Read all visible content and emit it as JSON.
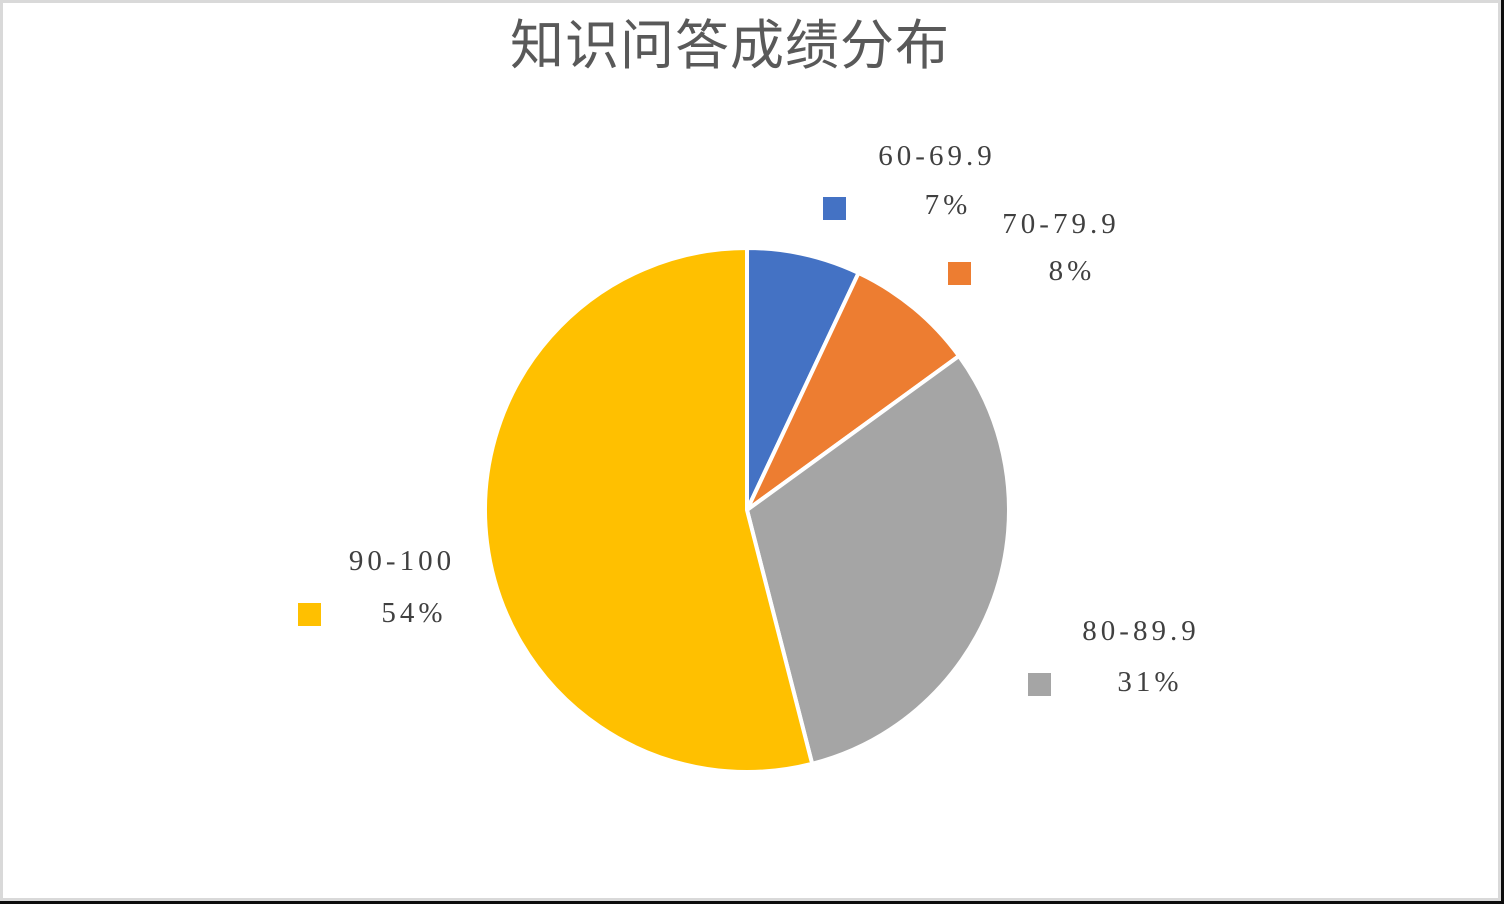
{
  "frame": {
    "background": "#FFFFFF",
    "inner_border_color": "#D9D9D9",
    "outer_border_color": "#0D0D0D"
  },
  "text_colors": {
    "title": "#595959",
    "data_labels": "#404040"
  },
  "chart_data": {
    "type": "pie",
    "title": "知识问答成绩分布",
    "categories": [
      "60-69.9",
      "70-79.9",
      "80-89.9",
      "90-100"
    ],
    "values": [
      7,
      8,
      31,
      54
    ],
    "value_unit": "%",
    "colors": [
      "#4472C4",
      "#ED7D31",
      "#A5A5A5",
      "#FFC000"
    ],
    "start_angle_deg": 0,
    "direction": "clockwise",
    "slice_border_color": "#FFFFFF",
    "legend_position": "outside-data-labels-with-keys",
    "grid": "off",
    "labels": [
      {
        "range": "60-69.9",
        "percent": "7%"
      },
      {
        "range": "70-79.9",
        "percent": "8%"
      },
      {
        "range": "80-89.9",
        "percent": "31%"
      },
      {
        "range": "90-100",
        "percent": "54%"
      }
    ]
  }
}
